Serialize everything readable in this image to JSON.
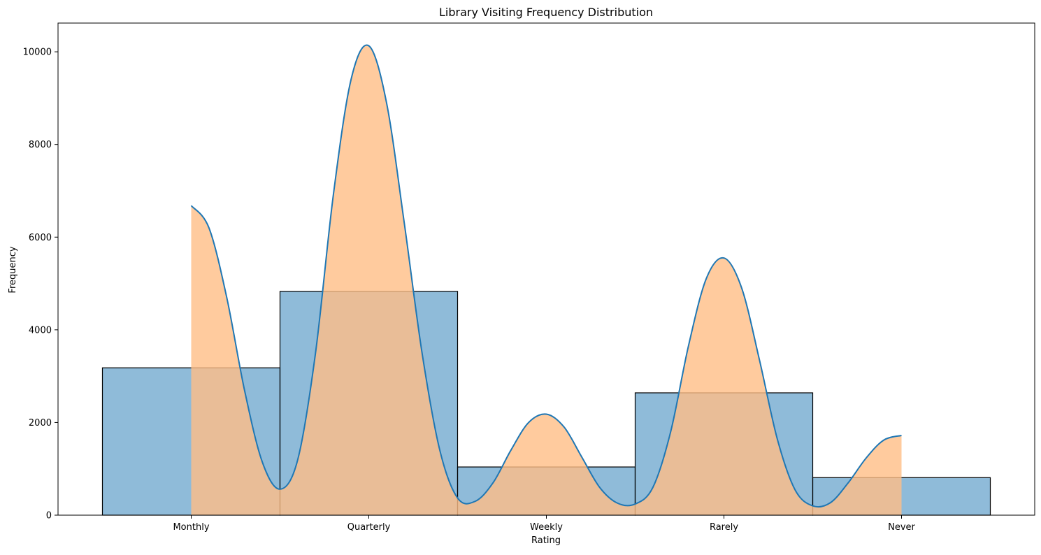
{
  "chart_data": {
    "type": "bar",
    "title": "Library Visiting Frequency Distribution",
    "xlabel": "Rating",
    "ylabel": "Frequency",
    "categories": [
      "Monthly",
      "Quarterly",
      "Weekly",
      "Rarely",
      "Never"
    ],
    "ylim": [
      0,
      10620
    ],
    "yticks": [
      0,
      2000,
      4000,
      6000,
      8000,
      10000
    ],
    "grid": false,
    "histogram": {
      "bin_edges": [
        -0.5,
        0.5,
        1.5,
        2.5,
        3.5,
        4.5
      ],
      "values": [
        3180,
        4830,
        1040,
        2640,
        810
      ],
      "fill_color": "#1f77b4",
      "fill_opacity": 0.5,
      "edge_color": "#000000"
    },
    "kde": {
      "line_color": "#1f77b4",
      "area_color": "#ffbe86",
      "area_opacity": 0.8,
      "x": [
        0,
        0.1,
        0.2,
        0.3,
        0.4,
        0.5,
        0.6,
        0.7,
        0.8,
        0.9,
        1.0,
        1.1,
        1.2,
        1.3,
        1.4,
        1.5,
        1.6,
        1.7,
        1.8,
        1.9,
        2.0,
        2.1,
        2.2,
        2.3,
        2.4,
        2.5,
        2.6,
        2.7,
        2.8,
        2.9,
        3.0,
        3.1,
        3.2,
        3.3,
        3.4,
        3.5,
        3.6,
        3.7,
        3.8,
        3.9,
        4.0
      ],
      "y": [
        6680,
        6200,
        4700,
        2700,
        1150,
        560,
        1200,
        3500,
        6900,
        9400,
        10130,
        8900,
        6300,
        3500,
        1400,
        370,
        300,
        700,
        1400,
        2000,
        2180,
        1900,
        1250,
        600,
        260,
        240,
        600,
        1800,
        3650,
        5100,
        5550,
        4900,
        3350,
        1650,
        550,
        200,
        270,
        700,
        1230,
        1620,
        1720
      ]
    }
  }
}
